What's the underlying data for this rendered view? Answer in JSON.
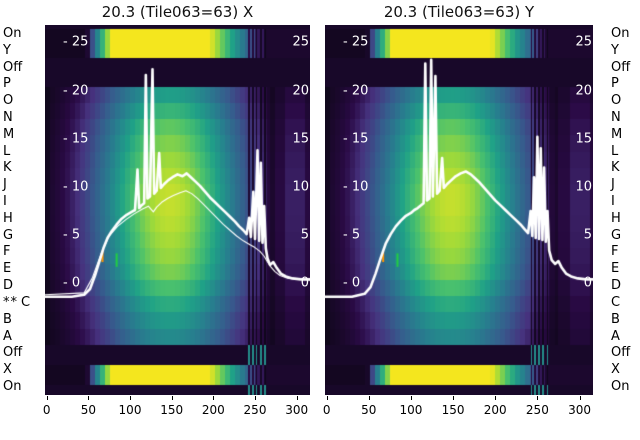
{
  "figure": {
    "titles": {
      "left": "20.3 (Tile063=63) X",
      "right": "20.3 (Tile063=63) Y"
    },
    "row_labels": [
      "On",
      "Y",
      "Off",
      "P",
      "O",
      "N",
      "M",
      "L",
      "K",
      "J",
      "I",
      "H",
      "G",
      "F",
      "E",
      "D",
      "C",
      "B",
      "A",
      "Off",
      "X",
      "On"
    ],
    "marker": {
      "text": "**",
      "row_index": 16
    },
    "x_ticks": [
      0,
      50,
      100,
      150,
      200,
      250,
      300
    ],
    "inner_y_ticks": [
      25,
      20,
      15,
      10,
      5,
      0
    ]
  },
  "chart_data": {
    "type": "heatmap",
    "colormap": "viridis",
    "palette": [
      [
        0,
        "#0a0612"
      ],
      [
        0.1,
        "#2a0a45"
      ],
      [
        0.18,
        "#46327e"
      ],
      [
        0.3,
        "#365c8d"
      ],
      [
        0.44,
        "#277f8e"
      ],
      [
        0.58,
        "#1fa187"
      ],
      [
        0.72,
        "#4ac16d"
      ],
      [
        0.86,
        "#a0da39"
      ],
      [
        1,
        "#f4e61e"
      ]
    ],
    "x_range": [
      -2,
      316
    ],
    "y_range": [
      -11.6,
      26.8
    ],
    "x_ticks": [
      0,
      50,
      100,
      150,
      200,
      250,
      300
    ],
    "y_ticks": [
      25,
      20,
      15,
      10,
      5,
      0
    ],
    "band_layout": [
      {
        "frac": [
          0,
          0.012
        ],
        "kind": "dark"
      },
      {
        "frac": [
          0.012,
          0.089
        ],
        "kind": "bright"
      },
      {
        "frac": [
          0.089,
          0.168
        ],
        "kind": "dark"
      },
      {
        "frac": [
          0.168,
          0.864
        ],
        "kind": "body"
      },
      {
        "frac": [
          0.864,
          0.918
        ],
        "kind": "dark"
      },
      {
        "frac": [
          0.918,
          0.972
        ],
        "kind": "bright"
      },
      {
        "frac": [
          0.972,
          1
        ],
        "kind": "dark"
      }
    ],
    "body_rows": [
      "P",
      "O",
      "N",
      "M",
      "L",
      "K",
      "J",
      "I",
      "H",
      "G",
      "F",
      "E",
      "D",
      "C",
      "B",
      "A"
    ],
    "body_row_intensity": [
      0.62,
      0.72,
      0.82,
      0.88,
      0.93,
      0.97,
      1,
      1,
      0.98,
      0.95,
      0.92,
      0.87,
      0.78,
      0.68,
      0.6,
      0.53
    ],
    "stripes": {
      "x": [
        243,
        247.5,
        252,
        257,
        262
      ],
      "width": 2,
      "body_factor": 0.22,
      "bright_factor": 0.3
    },
    "dim_column": {
      "range": [
        264,
        274
      ],
      "factor": 0.6
    },
    "marks": [
      {
        "x": 67,
        "v": 3.4,
        "len": 1.2,
        "color": "#ff9500"
      },
      {
        "x": 84,
        "v": 3.1,
        "len": 1.4,
        "color": "#22cc44"
      }
    ],
    "plots": [
      {
        "name": "tile-x",
        "title": "20.3 (Tile063=63) X",
        "series": [
          {
            "name": "profile-thick",
            "line_width": 2.6,
            "points": [
              [
                -2,
                -1.4
              ],
              [
                30,
                -1.4
              ],
              [
                45,
                -1.2
              ],
              [
                52,
                -0.6
              ],
              [
                58,
                0.8
              ],
              [
                63,
                2.2
              ],
              [
                68,
                3.6
              ],
              [
                73,
                4.7
              ],
              [
                78,
                5.4
              ],
              [
                84,
                6.1
              ],
              [
                90,
                6.7
              ],
              [
                96,
                7.1
              ],
              [
                102,
                7.4
              ],
              [
                106,
                7.6
              ],
              [
                109,
                11.8
              ],
              [
                111,
                7.8
              ],
              [
                114,
                8.1
              ],
              [
                117,
                8.3
              ],
              [
                119,
                21.6
              ],
              [
                121,
                8.8
              ],
              [
                124,
                9
              ],
              [
                127,
                22.2
              ],
              [
                129,
                9.3
              ],
              [
                132,
                9.6
              ],
              [
                135,
                13.5
              ],
              [
                137,
                9.9
              ],
              [
                141,
                10.3
              ],
              [
                146,
                10.7
              ],
              [
                151,
                11
              ],
              [
                157,
                11.3
              ],
              [
                163,
                11.1
              ],
              [
                168,
                11.4
              ],
              [
                173,
                11
              ],
              [
                178,
                10.6
              ],
              [
                184,
                10.1
              ],
              [
                190,
                9.5
              ],
              [
                196,
                8.9
              ],
              [
                202,
                8.4
              ],
              [
                208,
                7.9
              ],
              [
                214,
                7.4
              ],
              [
                220,
                6.9
              ],
              [
                226,
                6.4
              ],
              [
                231,
                5.9
              ],
              [
                236,
                5.5
              ],
              [
                240,
                5.1
              ],
              [
                243,
                6.8
              ],
              [
                245,
                4.8
              ],
              [
                248,
                9.5
              ],
              [
                250,
                4.6
              ],
              [
                253,
                13.8
              ],
              [
                255,
                4.4
              ],
              [
                257,
                12.5
              ],
              [
                259,
                4.2
              ],
              [
                261,
                8
              ],
              [
                263,
                3.6
              ],
              [
                265,
                2.6
              ],
              [
                268,
                1.9
              ],
              [
                272,
                2.2
              ],
              [
                276,
                1.6
              ],
              [
                281,
                1
              ],
              [
                287,
                0.7
              ],
              [
                295,
                0.5
              ],
              [
                305,
                0.4
              ],
              [
                316,
                0.4
              ]
            ]
          },
          {
            "name": "profile-thin",
            "line_width": 1.1,
            "points": [
              [
                -2,
                -1.2
              ],
              [
                45,
                -1
              ],
              [
                55,
                0.6
              ],
              [
                65,
                3
              ],
              [
                75,
                4.9
              ],
              [
                85,
                5.9
              ],
              [
                95,
                6.6
              ],
              [
                105,
                7.2
              ],
              [
                115,
                7.7
              ],
              [
                122,
                8
              ],
              [
                128,
                7.4
              ],
              [
                132,
                7.9
              ],
              [
                138,
                8.4
              ],
              [
                145,
                8.8
              ],
              [
                152,
                9.1
              ],
              [
                160,
                9.4
              ],
              [
                167,
                9.6
              ],
              [
                174,
                9.3
              ],
              [
                181,
                8.8
              ],
              [
                188,
                8.2
              ],
              [
                196,
                7.5
              ],
              [
                204,
                6.8
              ],
              [
                212,
                6.1
              ],
              [
                220,
                5.5
              ],
              [
                228,
                4.9
              ],
              [
                236,
                4.4
              ],
              [
                244,
                4
              ],
              [
                250,
                3.7
              ],
              [
                256,
                3.3
              ],
              [
                261,
                2.8
              ],
              [
                265,
                2.2
              ],
              [
                269,
                1.7
              ],
              [
                274,
                1.2
              ],
              [
                280,
                0.8
              ],
              [
                290,
                0.5
              ],
              [
                305,
                0.4
              ],
              [
                316,
                0.35
              ]
            ]
          }
        ]
      },
      {
        "name": "tile-y",
        "title": "20.3 (Tile063=63) Y",
        "series": [
          {
            "name": "profile-thick",
            "line_width": 2.6,
            "points": [
              [
                -2,
                -1.4
              ],
              [
                30,
                -1.4
              ],
              [
                45,
                -1.1
              ],
              [
                52,
                -0.4
              ],
              [
                58,
                1
              ],
              [
                64,
                2.6
              ],
              [
                70,
                4.1
              ],
              [
                76,
                5.1
              ],
              [
                82,
                5.9
              ],
              [
                88,
                6.5
              ],
              [
                94,
                7
              ],
              [
                100,
                7.3
              ],
              [
                104,
                7.6
              ],
              [
                108,
                7.8
              ],
              [
                112,
                8.1
              ],
              [
                115,
                8.3
              ],
              [
                117,
                22.8
              ],
              [
                119,
                8.6
              ],
              [
                122,
                8.8
              ],
              [
                124,
                23.2
              ],
              [
                126,
                9
              ],
              [
                129,
                21.5
              ],
              [
                131,
                9.3
              ],
              [
                134,
                9.6
              ],
              [
                137,
                13
              ],
              [
                139,
                9.9
              ],
              [
                143,
                10.3
              ],
              [
                148,
                10.7
              ],
              [
                153,
                11.1
              ],
              [
                159,
                11.4
              ],
              [
                165,
                11.6
              ],
              [
                171,
                11.3
              ],
              [
                176,
                10.9
              ],
              [
                182,
                10.4
              ],
              [
                188,
                9.8
              ],
              [
                194,
                9.2
              ],
              [
                200,
                8.6
              ],
              [
                206,
                8.1
              ],
              [
                212,
                7.6
              ],
              [
                218,
                7.1
              ],
              [
                224,
                6.6
              ],
              [
                230,
                6.1
              ],
              [
                235,
                5.6
              ],
              [
                239,
                5.2
              ],
              [
                242,
                7.5
              ],
              [
                244,
                4.9
              ],
              [
                246,
                11
              ],
              [
                248,
                4.7
              ],
              [
                250,
                15.2
              ],
              [
                252,
                4.6
              ],
              [
                254,
                14
              ],
              [
                256,
                4.5
              ],
              [
                258,
                12
              ],
              [
                260,
                4.3
              ],
              [
                262,
                7.5
              ],
              [
                264,
                3.4
              ],
              [
                267,
                2.4
              ],
              [
                271,
                2
              ],
              [
                275,
                2.3
              ],
              [
                279,
                1.6
              ],
              [
                284,
                1
              ],
              [
                290,
                0.7
              ],
              [
                298,
                0.5
              ],
              [
                308,
                0.4
              ],
              [
                316,
                0.4
              ]
            ]
          }
        ]
      }
    ]
  }
}
